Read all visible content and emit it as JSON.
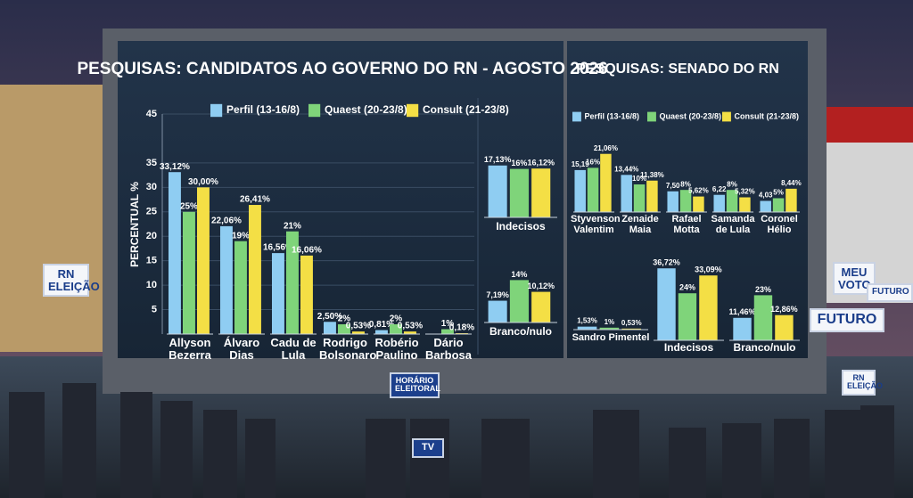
{
  "chart_data": [
    {
      "type": "bar",
      "title": "PESQUISAS: CANDIDATOS AO GOVERNO DO RN - AGOSTO 2026",
      "y_label": "PERCENTUAL %",
      "categories": [
        "Allyson Bezerra",
        "Álvaro Dias",
        "Cadu de Lula",
        "Rodrigo Bolsonaro",
        "Robério Paulino",
        "Dário Barbosa",
        "Indecisos",
        "Branco/nulo"
      ],
      "series": [
        {
          "name": "Perfil (13-16/8)",
          "color": "#8fcdf2",
          "values": [
            33.12,
            22.06,
            16.56,
            2.5,
            0.81,
            null,
            17.13,
            7.19
          ],
          "value_labels": [
            "33,12%",
            "22,06%",
            "16,56%",
            "2,50%",
            "0,81%",
            null,
            "17,13%",
            "7,19%"
          ]
        },
        {
          "name": "Quaest (20-23/8)",
          "color": "#7fd47a",
          "values": [
            25,
            19,
            21,
            2,
            2,
            1,
            16,
            14
          ],
          "value_labels": [
            "25%",
            "19%",
            "21%",
            "2%",
            "2%",
            "1%",
            "16%",
            "14%"
          ]
        },
        {
          "name": "Consult (21-23/8)",
          "color": "#f4df45",
          "values": [
            30,
            26.41,
            16.06,
            0.53,
            0.53,
            0.18,
            16.12,
            10.12
          ],
          "value_labels": [
            "30,00%",
            "26,41%",
            "16,06%",
            "0,53%",
            "0,53%",
            "0,18%",
            "16,12%",
            "10,12%"
          ]
        }
      ],
      "ylim": [
        0,
        45
      ],
      "yticks": [
        5,
        10,
        15,
        20,
        25,
        30,
        35,
        45
      ],
      "grid": true
    },
    {
      "type": "bar",
      "title": "PESQUISAS: SENADO DO RN",
      "categories": [
        "Styvenson Valentim",
        "Zenaide Maia",
        "Rafael Motta",
        "Samanda de Lula",
        "Coronel Hélio",
        "Sandro Pimentel",
        "Indecisos",
        "Branco/nulo"
      ],
      "series": [
        {
          "name": "Perfil (13-16/8)",
          "color": "#8fcdf2",
          "values": [
            15.19,
            13.44,
            7.5,
            6.22,
            4.03,
            1.53,
            36.72,
            11.46
          ],
          "value_labels": [
            "15,19",
            "13,44%",
            "7,50",
            "6,22",
            "4,03",
            "1,53%",
            "36,72%",
            "11,46%"
          ]
        },
        {
          "name": "Quaest (20-23/8)",
          "color": "#7fd47a",
          "values": [
            16,
            10,
            8,
            8,
            5,
            1,
            24,
            23
          ],
          "value_labels": [
            "16%",
            "10%",
            "8%",
            "8%",
            "5%",
            "1%",
            "24%",
            "23%"
          ]
        },
        {
          "name": "Consult (21-23/8)",
          "color": "#f4df45",
          "values": [
            21.06,
            11.38,
            5.62,
            5.32,
            8.44,
            0.53,
            33.09,
            12.86
          ],
          "value_labels": [
            "21,06%",
            "11,38%",
            "5,62%",
            "5,32%",
            "8,44%",
            "0,53%",
            "33,09%",
            "12,86%"
          ]
        }
      ]
    }
  ],
  "scene": {
    "signs": [
      "RN ELEIÇÃO",
      "MEU VOTO",
      "FUTURO",
      "FUTURO",
      "RN ELEIÇÃO"
    ],
    "camera_sign": "HORÁRIO ELEITORAL",
    "tv": "TV"
  }
}
